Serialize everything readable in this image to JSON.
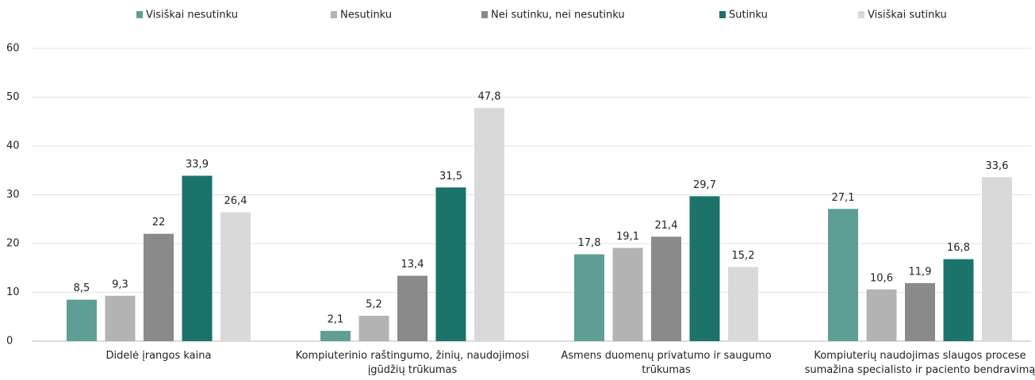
{
  "chart_data": {
    "type": "bar",
    "categories": [
      "Didelė įrangos kaina",
      "Kompiuterinio raštingumo, žinių, naudojimosi įgūdžių trūkumas",
      "Asmens duomenų privatumo ir saugumo trūkumas",
      "Kompiuterių naudojimas slaugos procese sumažina specialisto ir paciento bendravimą"
    ],
    "series": [
      {
        "name": "Visiškai nesutinku",
        "color": "#5f9e94",
        "values": [
          8.5,
          2.1,
          17.8,
          27.1
        ],
        "value_labels": [
          "8,5",
          "2,1",
          "17,8",
          "27,1"
        ]
      },
      {
        "name": "Nesutinku",
        "color": "#b3b3b3",
        "values": [
          9.3,
          5.2,
          19.1,
          10.6
        ],
        "value_labels": [
          "9,3",
          "5,2",
          "19,1",
          "10,6"
        ]
      },
      {
        "name": "Nei sutinku, nei nesutinku",
        "color": "#8a8a8a",
        "values": [
          22,
          13.4,
          21.4,
          11.9
        ],
        "value_labels": [
          "22",
          "13,4",
          "21,4",
          "11,9"
        ]
      },
      {
        "name": "Sutinku",
        "color": "#1b7369",
        "values": [
          33.9,
          31.5,
          29.7,
          16.8
        ],
        "value_labels": [
          "33,9",
          "31,5",
          "29,7",
          "16,8"
        ]
      },
      {
        "name": "Visiškai sutinku",
        "color": "#d9d9d9",
        "values": [
          26.4,
          47.8,
          15.2,
          33.6
        ],
        "value_labels": [
          "26,4",
          "47,8",
          "15,2",
          "33,6"
        ]
      }
    ],
    "ylim": [
      0,
      60
    ],
    "yticks": [
      0,
      10,
      20,
      30,
      40,
      50,
      60
    ],
    "grid": true,
    "legend": "top"
  }
}
